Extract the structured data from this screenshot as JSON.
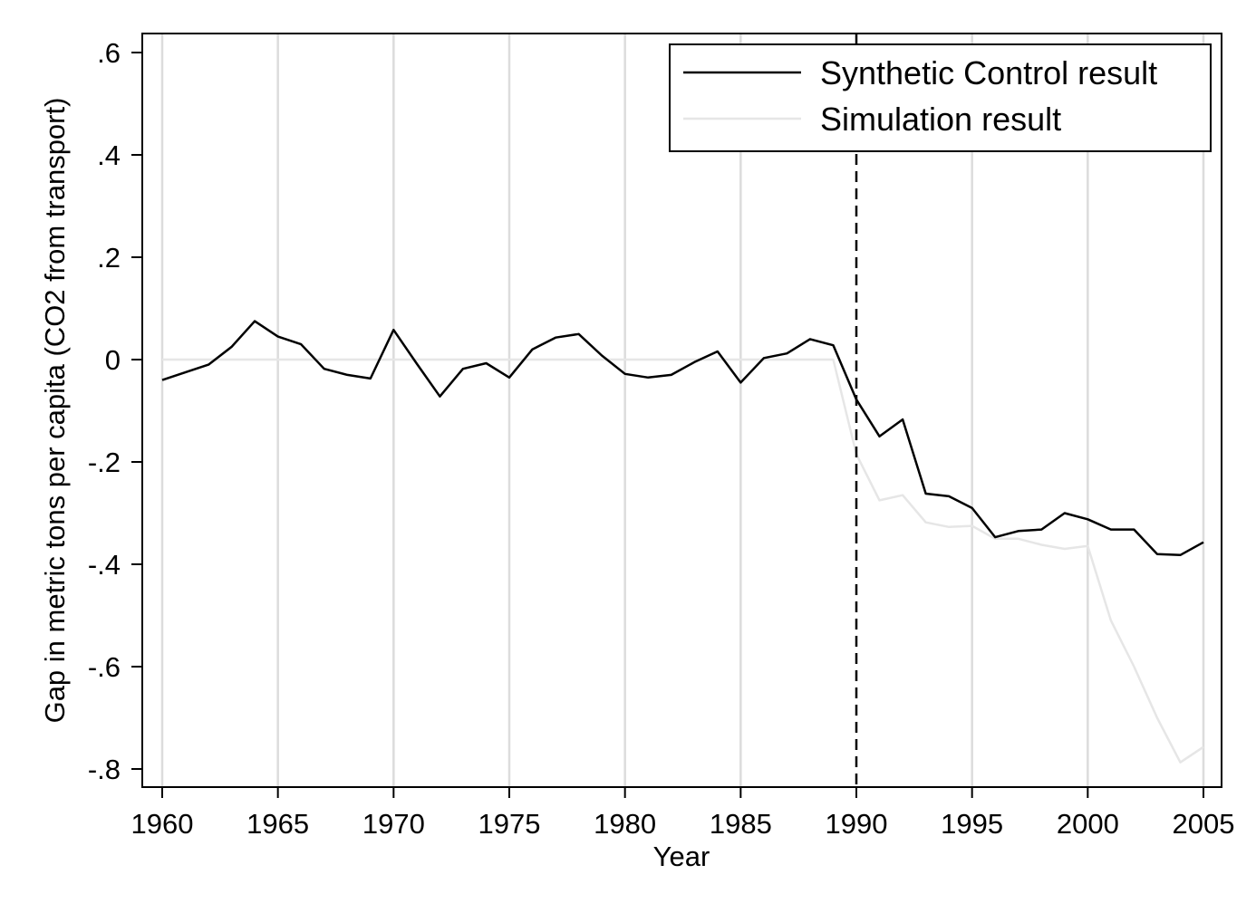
{
  "chart_data": {
    "type": "line",
    "title": "",
    "xlabel": "Year",
    "ylabel": "Gap in metric tons per capita (CO2 from transport)",
    "xlim": [
      1960,
      2005
    ],
    "ylim": [
      -0.8,
      0.6
    ],
    "xticks": [
      1960,
      1965,
      1970,
      1975,
      1980,
      1985,
      1990,
      1995,
      2000,
      2005
    ],
    "xtick_labels": [
      "1960",
      "1965",
      "1970",
      "1975",
      "1980",
      "1985",
      "1990",
      "1995",
      "2000",
      "2005"
    ],
    "yticks": [
      0.6,
      0.4,
      0.2,
      0,
      -0.2,
      -0.4,
      -0.6,
      -0.8
    ],
    "ytick_labels": [
      ".6",
      ".4",
      ".2",
      "0",
      "-.2",
      "-.4",
      "-.6",
      "-.8"
    ],
    "vertical_grid": true,
    "reference_line": {
      "x": 1990,
      "style": "dashed",
      "color": "#000000"
    },
    "legend_position": "top-right",
    "x": [
      1960,
      1961,
      1962,
      1963,
      1964,
      1965,
      1966,
      1967,
      1968,
      1969,
      1970,
      1971,
      1972,
      1973,
      1974,
      1975,
      1976,
      1977,
      1978,
      1979,
      1980,
      1981,
      1982,
      1983,
      1984,
      1985,
      1986,
      1987,
      1988,
      1989,
      1990,
      1991,
      1992,
      1993,
      1994,
      1995,
      1996,
      1997,
      1998,
      1999,
      2000,
      2001,
      2002,
      2003,
      2004,
      2005
    ],
    "series": [
      {
        "name": "Synthetic Control result",
        "color": "#000000",
        "values": [
          -0.04,
          -0.025,
          -0.01,
          0.025,
          0.075,
          0.045,
          0.03,
          -0.018,
          -0.03,
          -0.037,
          0.058,
          -0.008,
          -0.072,
          -0.018,
          -0.007,
          -0.035,
          0.02,
          0.043,
          0.05,
          0.008,
          -0.028,
          -0.035,
          -0.03,
          -0.005,
          0.016,
          -0.045,
          0.003,
          0.012,
          0.04,
          0.028,
          -0.078,
          -0.15,
          -0.117,
          -0.262,
          -0.267,
          -0.29,
          -0.347,
          -0.335,
          -0.332,
          -0.3,
          -0.312,
          -0.332,
          -0.332,
          -0.38,
          -0.382,
          -0.357
        ]
      },
      {
        "name": "Simulation result",
        "color": "#e6e6e6",
        "values": [
          0,
          0,
          0,
          0,
          0,
          0,
          0,
          0,
          0,
          0,
          0,
          0,
          0,
          0,
          0,
          0,
          0,
          0,
          0,
          0,
          0,
          0,
          0,
          0,
          0,
          0,
          0,
          0,
          0,
          0,
          -0.185,
          -0.275,
          -0.265,
          -0.318,
          -0.327,
          -0.325,
          -0.35,
          -0.35,
          -0.362,
          -0.37,
          -0.364,
          -0.51,
          -0.6,
          -0.7,
          -0.787,
          -0.757
        ]
      }
    ]
  }
}
